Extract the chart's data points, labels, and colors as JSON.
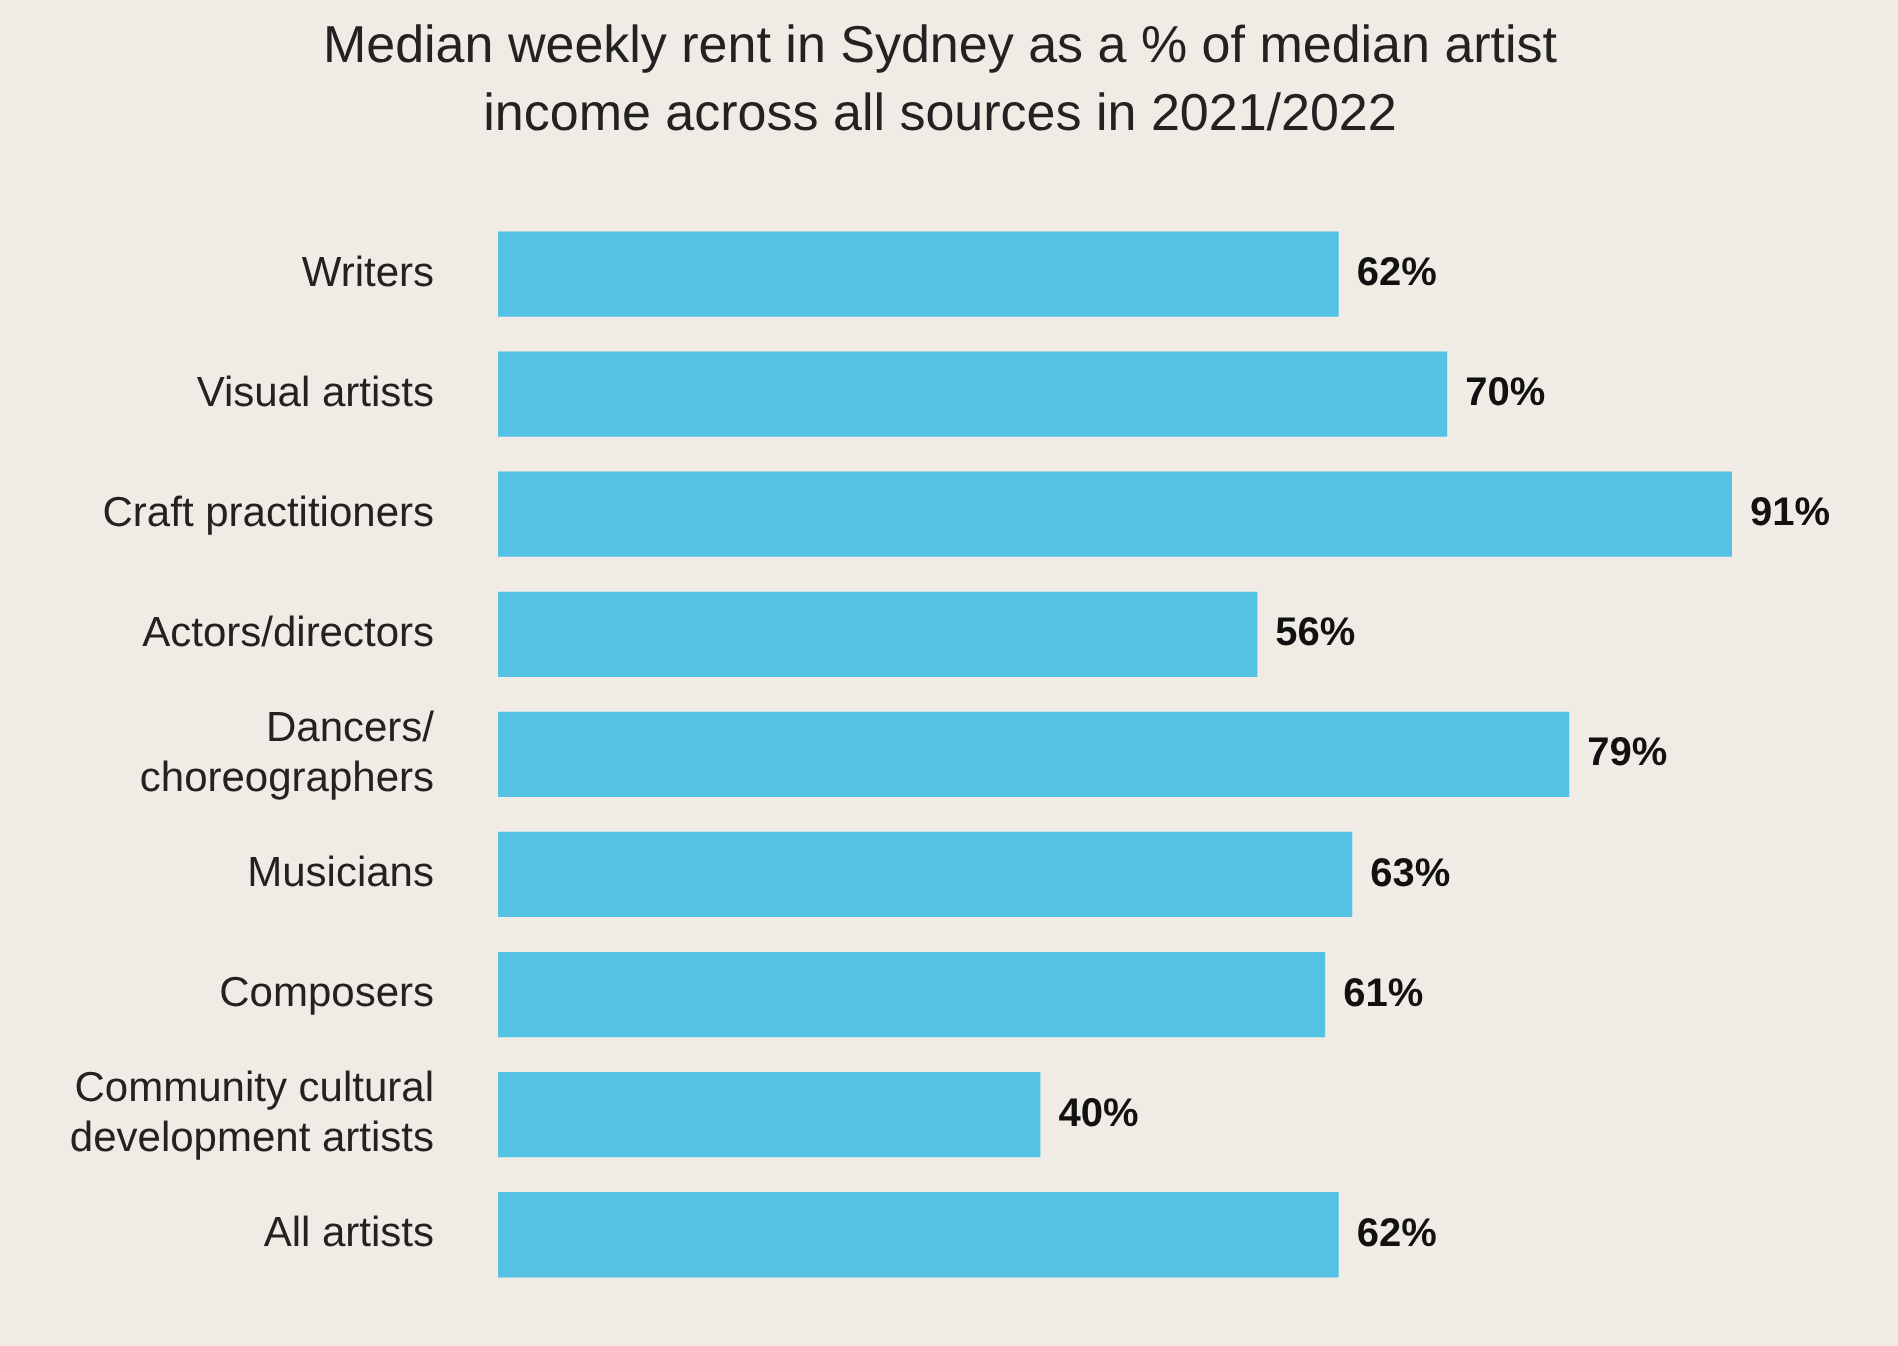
{
  "chart_data": {
    "type": "bar",
    "orientation": "horizontal",
    "title": "Median weekly rent in Sydney as a % of median artist income across all sources in 2021/2022",
    "categories": [
      "Writers",
      "Visual artists",
      "Craft practitioners",
      "Actors/directors",
      "Dancers/choreographers",
      "Musicians",
      "Composers",
      "Community cultural development artists",
      "All artists"
    ],
    "values": [
      62,
      70,
      91,
      56,
      79,
      63,
      61,
      40,
      62
    ],
    "value_labels": [
      "62%",
      "70%",
      "91%",
      "56%",
      "79%",
      "63%",
      "61%",
      "40%",
      "62%"
    ],
    "color": "#56c2e3",
    "tick_labels": "y"
  }
}
